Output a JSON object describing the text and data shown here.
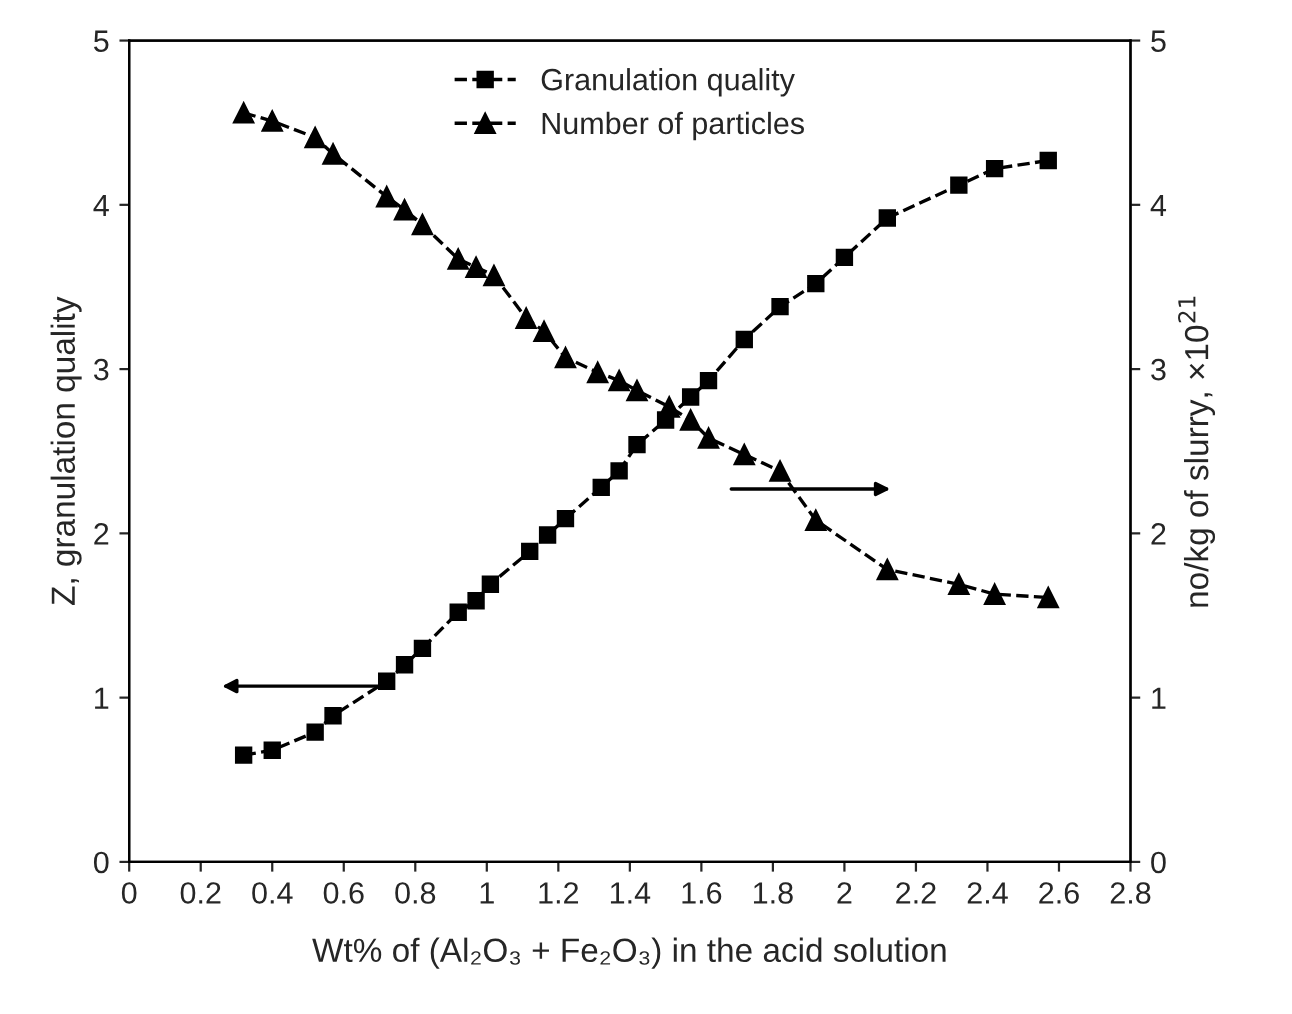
{
  "chart_data": {
    "type": "line",
    "xlabel": "Wt% of (Al₂O₃ + Fe₂O₃) in the acid solution",
    "ylabel": "Z, granulation quality",
    "y2label": "no/kg of slurry, ×10$^{21}$",
    "series": [
      {
        "name": "Granulation quality",
        "color": "#000000",
        "marker": "square",
        "x": [
          0.32,
          0.4,
          0.52,
          0.57,
          0.72,
          0.77,
          0.82,
          0.92,
          0.97,
          1.01,
          1.12,
          1.17,
          1.22,
          1.32,
          1.37,
          1.42,
          1.5,
          1.57,
          1.62,
          1.72,
          1.82,
          1.92,
          2.0,
          2.12,
          2.32,
          2.42,
          2.57
        ],
        "values": [
          0.65,
          0.68,
          0.79,
          0.89,
          1.1,
          1.2,
          1.3,
          1.52,
          1.59,
          1.69,
          1.89,
          1.99,
          2.09,
          2.28,
          2.38,
          2.54,
          2.69,
          2.83,
          2.93,
          3.18,
          3.38,
          3.52,
          3.68,
          3.92,
          4.12,
          4.22,
          4.27
        ]
      },
      {
        "name": "Number of particles",
        "color": "#000000",
        "marker": "triangle",
        "axis": "y2",
        "x": [
          0.32,
          0.4,
          0.52,
          0.57,
          0.72,
          0.77,
          0.82,
          0.92,
          0.97,
          1.02,
          1.11,
          1.16,
          1.22,
          1.31,
          1.37,
          1.42,
          1.51,
          1.57,
          1.62,
          1.72,
          1.82,
          1.92,
          2.12,
          2.32,
          2.42,
          2.57
        ],
        "values": [
          4.56,
          4.51,
          4.41,
          4.31,
          4.05,
          3.97,
          3.88,
          3.67,
          3.62,
          3.57,
          3.31,
          3.23,
          3.07,
          2.98,
          2.93,
          2.87,
          2.77,
          2.69,
          2.58,
          2.48,
          2.38,
          2.08,
          1.78,
          1.69,
          1.63,
          1.61
        ]
      }
    ],
    "xlim": [
      0,
      2.8
    ],
    "xticks": [
      0,
      0.2,
      0.4,
      0.6,
      0.8,
      1,
      1.2,
      1.4,
      1.6,
      1.8,
      2,
      2.2,
      2.4,
      2.6,
      2.8
    ],
    "ylim": [
      0,
      5
    ],
    "yticks": [
      0,
      1,
      2,
      3,
      4,
      5
    ],
    "y2lim": [
      0,
      5
    ],
    "y2ticks": [
      0,
      1,
      2,
      3,
      4,
      5
    ],
    "line_style": "dashed",
    "grid": false,
    "legend": "top"
  }
}
